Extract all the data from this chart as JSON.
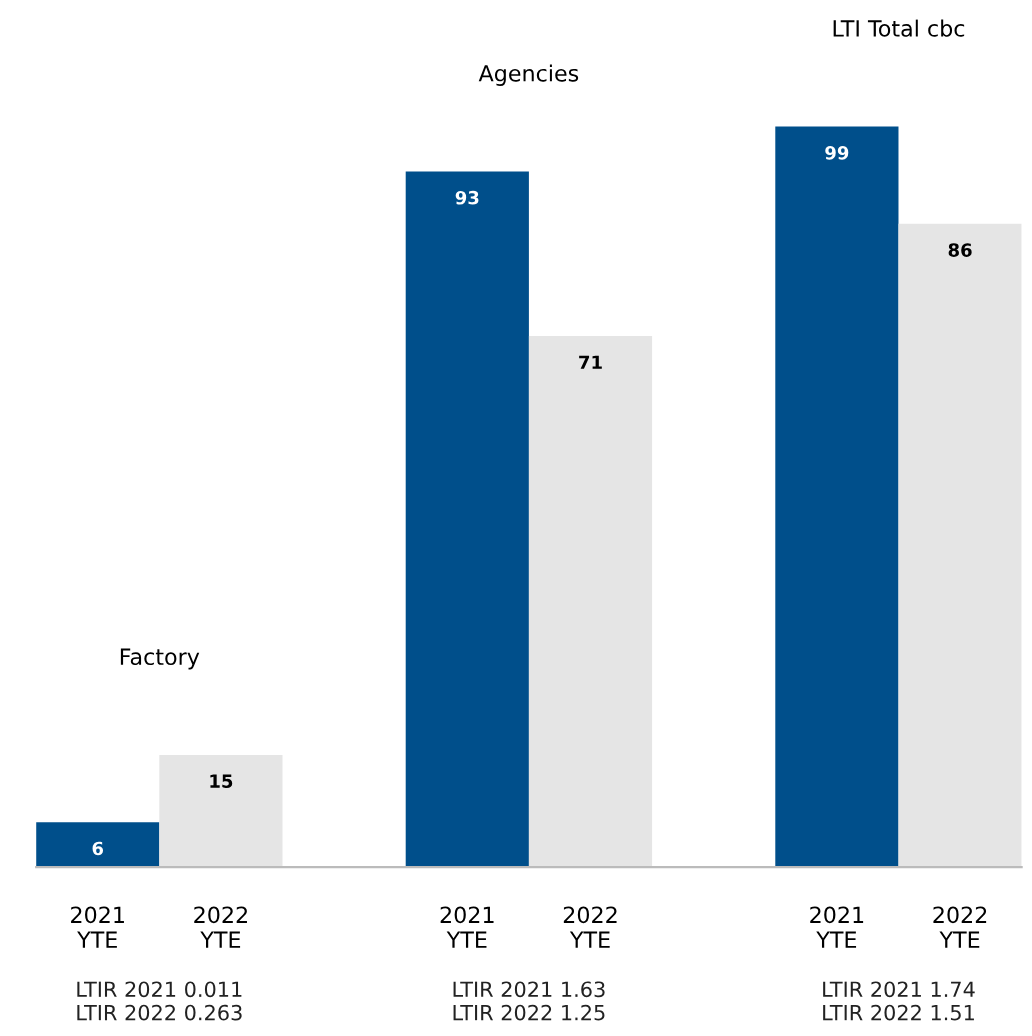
{
  "chart_data": {
    "type": "bar",
    "data_labels": true,
    "categories": [
      "2021\nYTE",
      "2022\nYTE",
      null,
      "2021\nYTE",
      "2022\nYTE",
      null,
      "2021\nYTE",
      "2022\nYTE"
    ],
    "values": [
      6,
      15,
      null,
      93,
      71,
      null,
      99,
      86
    ],
    "colors": [
      "#004f8b",
      "#e5e5e5",
      null,
      "#004f8b",
      "#e5e5e5",
      null,
      "#004f8b",
      "#e5e5e5"
    ],
    "annotations": [
      "Factory",
      "Agencies",
      "LTI Total cbc",
      "LTIR 2021 0.011\nLTIR 2022 0.263",
      "LTIR 2021 1.63\nLTIR 2022 1.25",
      "LTIR 2021 1.74\nLTIR 2022 1.51"
    ],
    "grid": false,
    "legend": false
  }
}
